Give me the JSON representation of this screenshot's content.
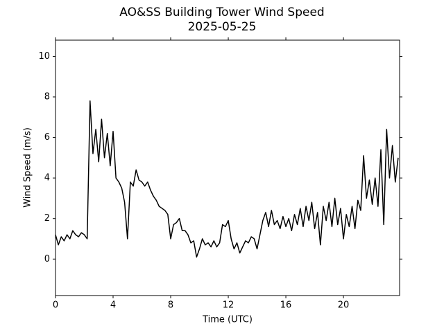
{
  "chart_data": {
    "type": "line",
    "title": "AO&SS Building Tower Wind Speed",
    "subtitle": "2025-05-25",
    "x_label": "Time (UTC)",
    "y_label": "Wind Speed (m/s)",
    "xlim": [
      0,
      23.9
    ],
    "ylim": [
      -1.8,
      10.8
    ],
    "xticks": [
      0,
      4,
      8,
      12,
      16,
      20
    ],
    "yticks": [
      0,
      2,
      4,
      6,
      8,
      10
    ],
    "series": [
      {
        "color": "#000000",
        "x": [
          0,
          0.2,
          0.4,
          0.6,
          0.8,
          1.0,
          1.2,
          1.4,
          1.6,
          1.8,
          2.0,
          2.2,
          2.4,
          2.6,
          2.8,
          3.0,
          3.2,
          3.4,
          3.6,
          3.8,
          4.0,
          4.2,
          4.4,
          4.6,
          4.8,
          5.0,
          5.2,
          5.4,
          5.6,
          5.8,
          6.0,
          6.2,
          6.4,
          6.6,
          6.8,
          7.0,
          7.2,
          7.4,
          7.6,
          7.8,
          8.0,
          8.2,
          8.4,
          8.6,
          8.8,
          9.0,
          9.2,
          9.4,
          9.6,
          9.8,
          10.0,
          10.2,
          10.4,
          10.6,
          10.8,
          11.0,
          11.2,
          11.4,
          11.6,
          11.8,
          12.0,
          12.2,
          12.4,
          12.6,
          12.8,
          13.0,
          13.2,
          13.4,
          13.6,
          13.8,
          14.0,
          14.2,
          14.4,
          14.6,
          14.8,
          15.0,
          15.2,
          15.4,
          15.6,
          15.8,
          16.0,
          16.2,
          16.4,
          16.6,
          16.8,
          17.0,
          17.2,
          17.4,
          17.6,
          17.8,
          18.0,
          18.2,
          18.4,
          18.6,
          18.8,
          19.0,
          19.2,
          19.4,
          19.6,
          19.8,
          20.0,
          20.2,
          20.4,
          20.6,
          20.8,
          21.0,
          21.2,
          21.4,
          21.6,
          21.8,
          22.0,
          22.2,
          22.4,
          22.6,
          22.8,
          23.0,
          23.2,
          23.4,
          23.6,
          23.8
        ],
        "values": [
          1.2,
          0.7,
          1.1,
          0.9,
          1.2,
          1.0,
          1.4,
          1.2,
          1.1,
          1.3,
          1.2,
          1.0,
          7.8,
          5.2,
          6.4,
          4.8,
          6.9,
          5.0,
          6.2,
          4.6,
          6.3,
          4.0,
          3.8,
          3.5,
          2.8,
          1.0,
          3.8,
          3.6,
          4.4,
          3.9,
          3.8,
          3.6,
          3.8,
          3.4,
          3.1,
          2.9,
          2.6,
          2.5,
          2.4,
          2.2,
          1.0,
          1.7,
          1.8,
          2.0,
          1.4,
          1.4,
          1.2,
          0.8,
          0.9,
          0.1,
          0.5,
          1.0,
          0.7,
          0.8,
          0.6,
          0.9,
          0.6,
          0.8,
          1.7,
          1.6,
          1.9,
          1.0,
          0.5,
          0.8,
          0.3,
          0.6,
          0.9,
          0.8,
          1.1,
          1.0,
          0.5,
          1.2,
          1.9,
          2.3,
          1.6,
          2.4,
          1.7,
          1.9,
          1.5,
          2.1,
          1.6,
          2.0,
          1.4,
          2.2,
          1.7,
          2.5,
          1.6,
          2.6,
          1.9,
          2.8,
          1.5,
          2.3,
          0.7,
          2.6,
          1.9,
          2.8,
          1.6,
          3.0,
          1.7,
          2.5,
          1.0,
          2.2,
          1.6,
          2.6,
          1.5,
          2.9,
          2.4,
          5.1,
          3.0,
          3.9,
          2.7,
          4.0,
          2.6,
          5.4,
          1.7,
          6.4,
          4.0,
          5.6,
          3.8,
          5.0
        ]
      }
    ]
  }
}
